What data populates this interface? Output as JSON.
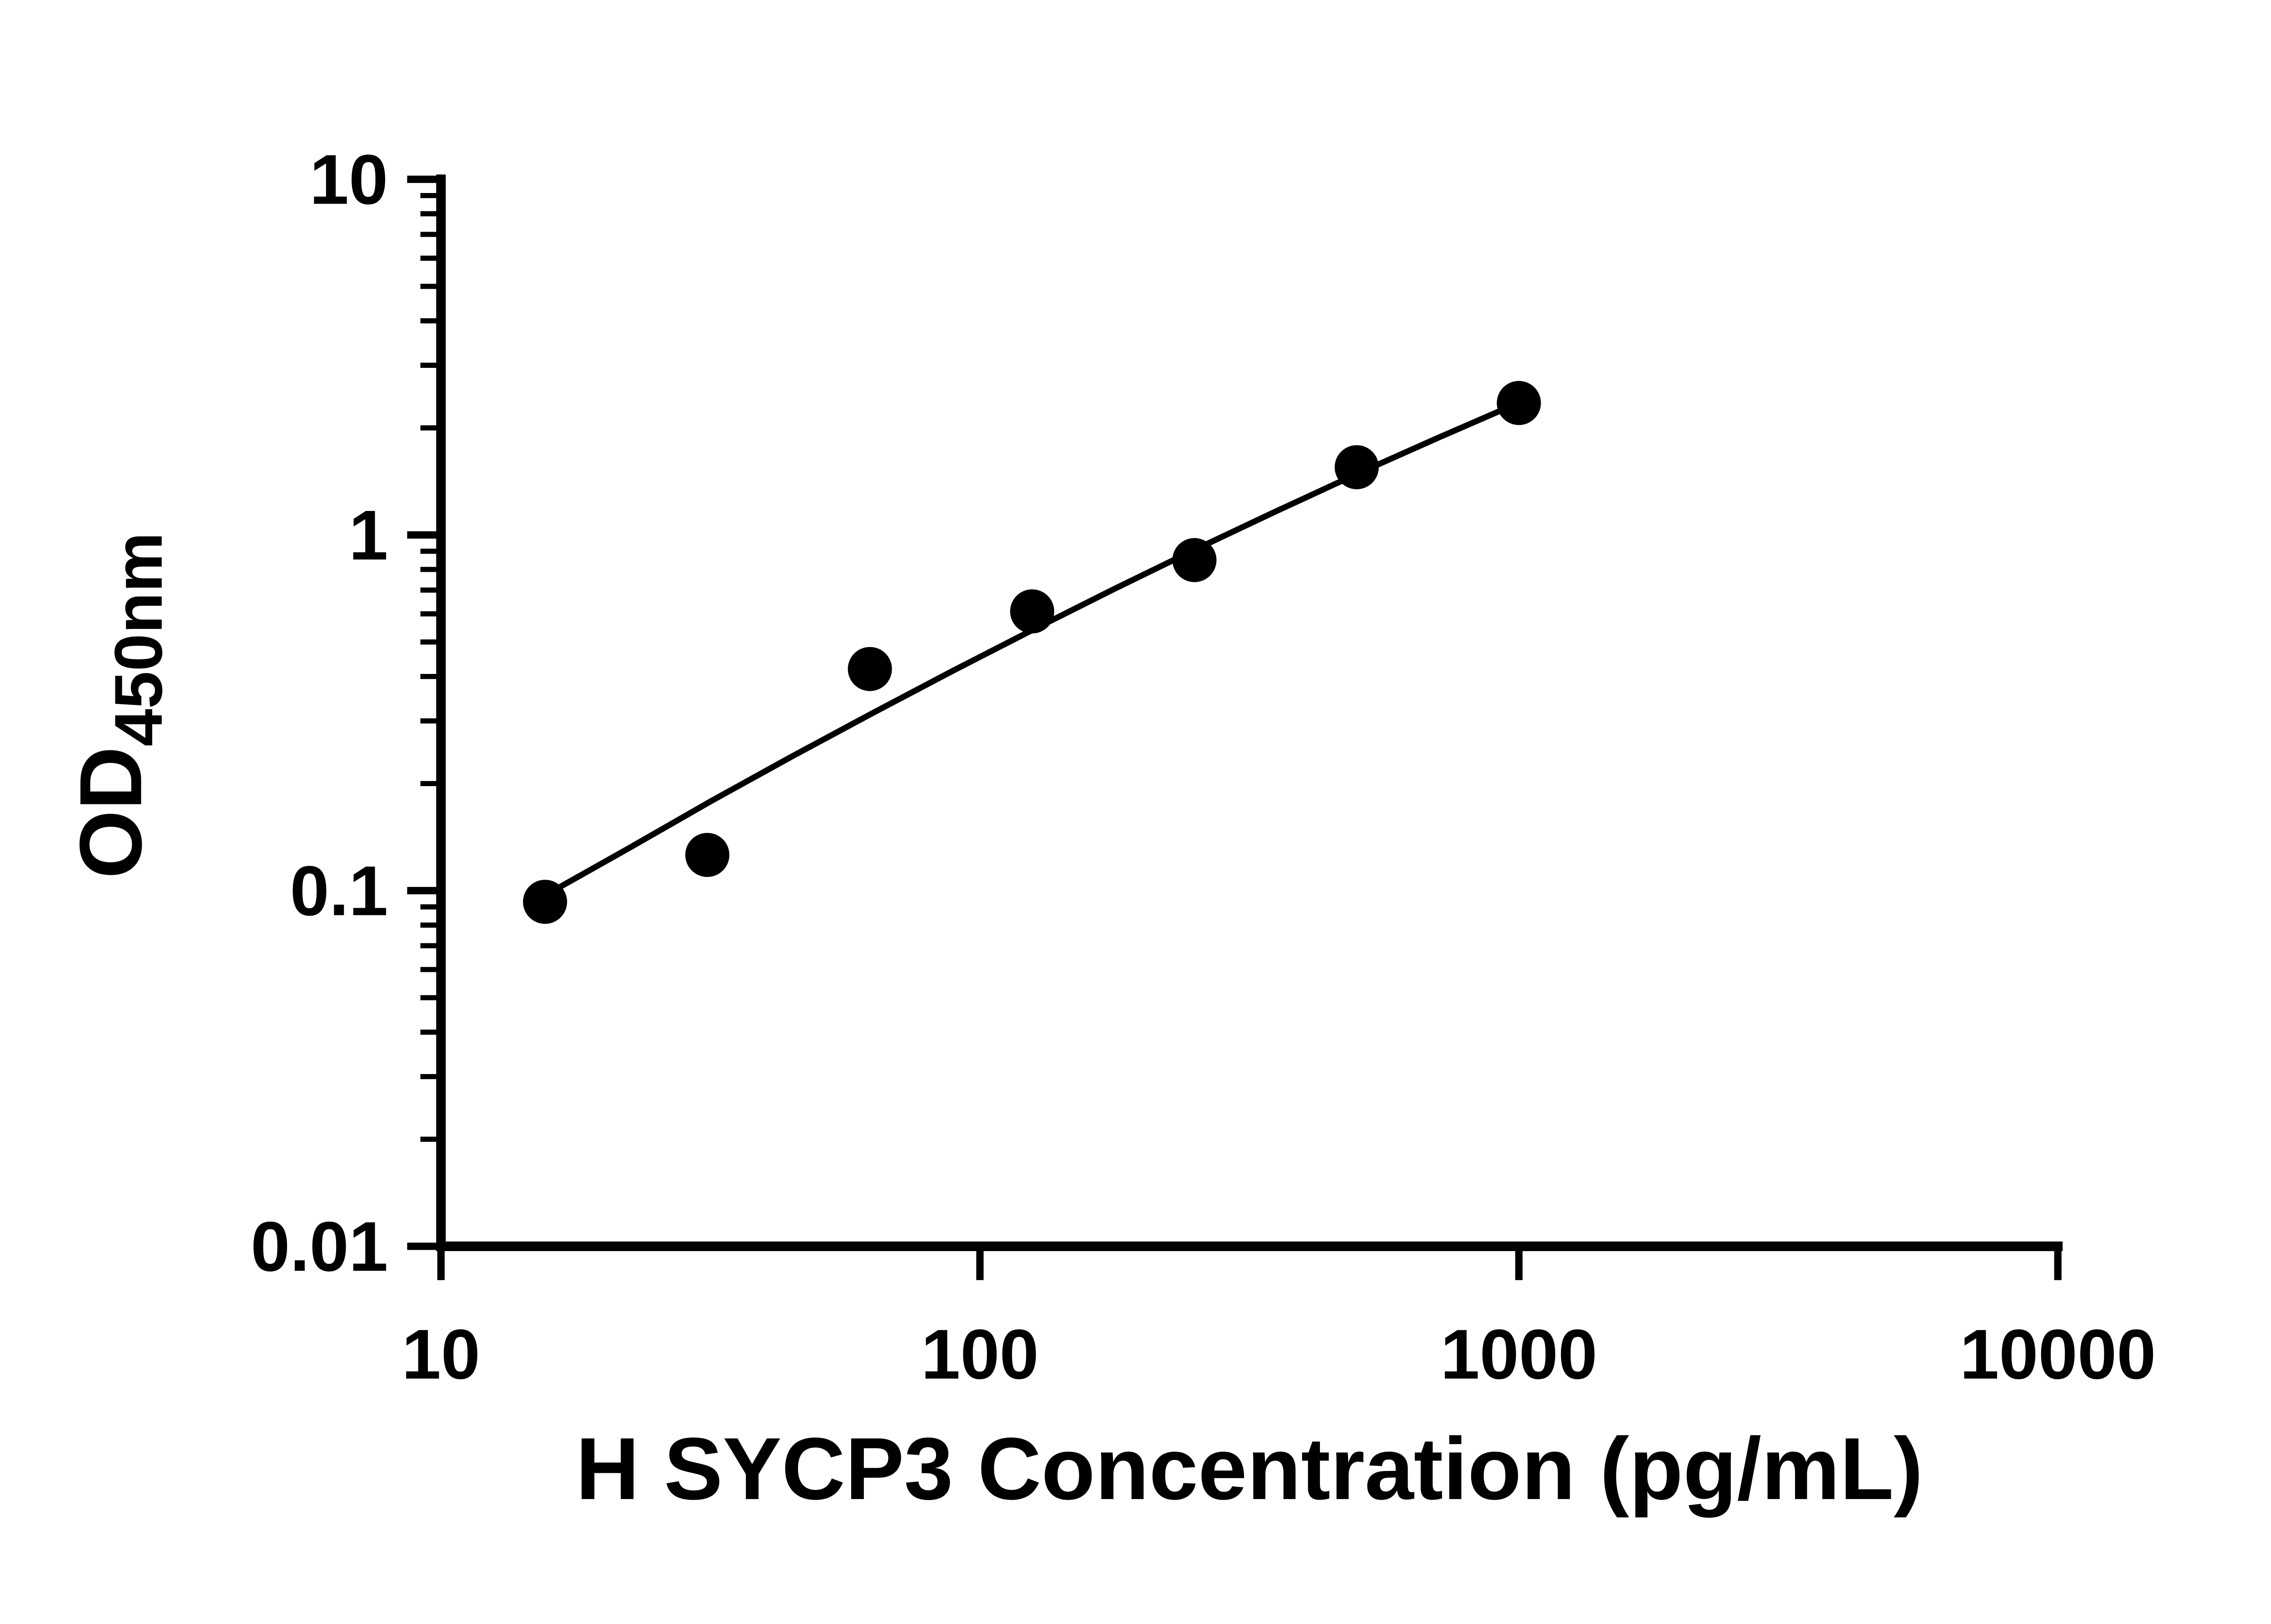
{
  "chart_data": {
    "type": "scatter",
    "title": "",
    "xlabel": "H SYCP3 Concentration (pg/mL)",
    "ylabel_main": "OD",
    "ylabel_sub": "450nm",
    "x_scale": "log10",
    "y_scale": "log10",
    "xlim": [
      10,
      10000
    ],
    "ylim": [
      0.01,
      10
    ],
    "grid": false,
    "legend": false,
    "x_ticks": [
      {
        "value": 10,
        "label": "10"
      },
      {
        "value": 100,
        "label": "100"
      },
      {
        "value": 1000,
        "label": "1000"
      },
      {
        "value": 10000,
        "label": "10000"
      }
    ],
    "y_ticks": [
      {
        "value": 10,
        "label": "10"
      },
      {
        "value": 1,
        "label": "1"
      },
      {
        "value": 0.1,
        "label": "0.1"
      },
      {
        "value": 0.01,
        "label": "0.01"
      }
    ],
    "y_minor_ticks": true,
    "points": [
      {
        "x": 15.6,
        "od": 0.093
      },
      {
        "x": 31.2,
        "od": 0.126
      },
      {
        "x": 62.5,
        "od": 0.42
      },
      {
        "x": 125,
        "od": 0.61
      },
      {
        "x": 250,
        "od": 0.85
      },
      {
        "x": 500,
        "od": 1.55
      },
      {
        "x": 1000,
        "od": 2.35
      }
    ],
    "trend_line": [
      [
        15.8,
        0.098
      ],
      [
        22.4,
        0.132
      ],
      [
        31.6,
        0.178
      ],
      [
        44.7,
        0.238
      ],
      [
        63.1,
        0.315
      ],
      [
        89.1,
        0.415
      ],
      [
        125.9,
        0.543
      ],
      [
        177.8,
        0.706
      ],
      [
        251.2,
        0.911
      ],
      [
        354.8,
        1.167
      ],
      [
        501.2,
        1.485
      ],
      [
        707.9,
        1.876
      ],
      [
        1000,
        2.355
      ]
    ],
    "marker_color": "#000000",
    "line_color": "#000000",
    "axis_color": "#000000",
    "background_color": "#ffffff"
  }
}
